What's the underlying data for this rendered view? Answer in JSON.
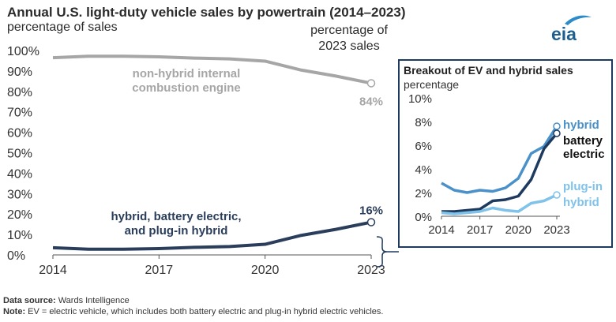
{
  "header": {
    "title": "Annual U.S. light-duty vehicle sales by powertrain (2014–2023)",
    "left_axis_unit": "percentage of sales",
    "right_axis_unit_line1": "percentage of",
    "right_axis_unit_line2": "2023 sales"
  },
  "logo": {
    "text": "eia",
    "icon": "eia-logo-icon",
    "color": "#1f5f8f"
  },
  "footer": {
    "source_label": "Data source:",
    "source_text": " Wards Intelligence",
    "note_label": "Note:",
    "note_text": " EV = electric vehicle, which includes both battery electric and plug-in hybrid electric vehicles."
  },
  "chart_data": [
    {
      "type": "line",
      "title": "Annual U.S. light-duty vehicle sales by powertrain (2014–2023)",
      "ylabel": "percentage of sales",
      "ylim": [
        0,
        100
      ],
      "x": [
        2014,
        2015,
        2016,
        2017,
        2018,
        2019,
        2020,
        2021,
        2022,
        2023
      ],
      "x_ticks": [
        "2014",
        "2017",
        "2020",
        "2023"
      ],
      "y_ticks": [
        "0%",
        "10%",
        "20%",
        "30%",
        "40%",
        "50%",
        "60%",
        "70%",
        "80%",
        "90%",
        "100%"
      ],
      "grid": false,
      "series": [
        {
          "name": "non-hybrid internal combustion engine",
          "label_line1": "non-hybrid internal",
          "label_line2": "combustion engine",
          "color": "#a6a6a6",
          "values": [
            96.5,
            97.2,
            97.2,
            96.9,
            96.3,
            95.9,
            94.8,
            90.5,
            87.5,
            84
          ],
          "end_label": "84%"
        },
        {
          "name": "hybrid, battery electric, and plug-in hybrid",
          "label_line1": "hybrid, battery electric,",
          "label_line2": "and plug-in hybrid",
          "color": "#2a3e5c",
          "values": [
            3.5,
            2.8,
            2.8,
            3.1,
            3.7,
            4.1,
            5.2,
            9.5,
            12.5,
            16
          ],
          "end_label": "16%"
        }
      ]
    },
    {
      "type": "line",
      "title": "Breakout of EV and hybrid sales",
      "ylabel": "percentage",
      "ylim": [
        0,
        10
      ],
      "x": [
        2014,
        2015,
        2016,
        2017,
        2018,
        2019,
        2020,
        2021,
        2022,
        2023
      ],
      "x_ticks": [
        "2014",
        "2017",
        "2020",
        "2023"
      ],
      "y_ticks": [
        "0%",
        "2%",
        "4%",
        "6%",
        "8%",
        "10%"
      ],
      "grid": false,
      "series": [
        {
          "name": "hybrid",
          "label_lines": [
            "hybrid"
          ],
          "color": "#4a90c9",
          "values": [
            2.8,
            2.2,
            2.0,
            2.2,
            2.1,
            2.4,
            3.2,
            5.3,
            5.9,
            7.6
          ]
        },
        {
          "name": "battery electric",
          "label_lines": [
            "battery",
            "electric"
          ],
          "color": "#1f3a5f",
          "values": [
            0.4,
            0.4,
            0.5,
            0.6,
            1.3,
            1.4,
            1.7,
            3.1,
            5.7,
            7.0
          ]
        },
        {
          "name": "plug-in hybrid",
          "label_lines": [
            "plug-in",
            "hybrid"
          ],
          "color": "#7fc2ea",
          "values": [
            0.3,
            0.2,
            0.3,
            0.4,
            0.7,
            0.5,
            0.4,
            1.1,
            1.3,
            1.8
          ]
        }
      ]
    }
  ]
}
